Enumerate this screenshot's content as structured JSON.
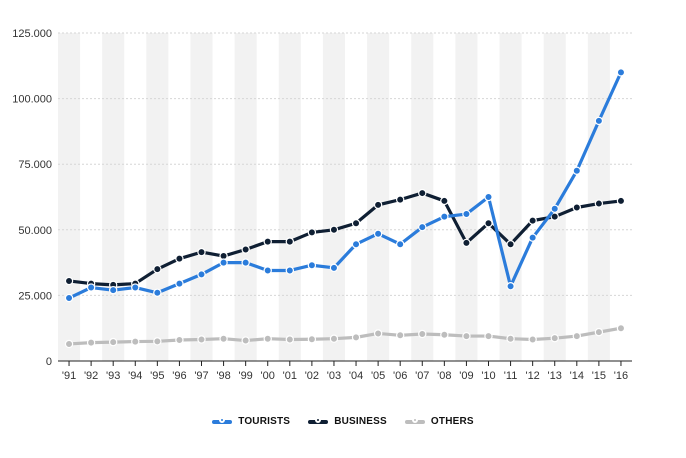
{
  "chart_data": {
    "type": "line",
    "categories": [
      "'91",
      "'92",
      "'93",
      "'94",
      "'95",
      "'96",
      "'97",
      "'98",
      "'99",
      "'00",
      "'01",
      "'02",
      "'03",
      "'04",
      "'05",
      "'06",
      "'07",
      "'08",
      "'09",
      "'10",
      "'11",
      "'12",
      "'13",
      "'14",
      "'15",
      "'16"
    ],
    "series": [
      {
        "name": "TOURISTS",
        "color": "#2b7cdb",
        "values": [
          24000,
          28000,
          27000,
          28000,
          26000,
          29500,
          33000,
          37500,
          37500,
          34500,
          34500,
          36500,
          35500,
          44500,
          48500,
          44500,
          51000,
          55000,
          56000,
          62500,
          28500,
          47000,
          58000,
          72500,
          91500,
          110000
        ]
      },
      {
        "name": "BUSINESS",
        "color": "#0f1f33",
        "values": [
          30500,
          29500,
          29000,
          29500,
          35000,
          39000,
          41500,
          40000,
          42500,
          45500,
          45500,
          49000,
          50000,
          52500,
          59500,
          61500,
          64000,
          61000,
          45000,
          52500,
          44500,
          53500,
          55000,
          58500,
          60000,
          61000
        ]
      },
      {
        "name": "OTHERS",
        "color": "#bdbdbd",
        "values": [
          6500,
          7000,
          7200,
          7400,
          7500,
          8000,
          8200,
          8500,
          7800,
          8500,
          8200,
          8300,
          8500,
          9000,
          10500,
          9800,
          10300,
          10000,
          9500,
          9500,
          8500,
          8200,
          8700,
          9500,
          11000,
          12500
        ]
      }
    ],
    "y_ticks": [
      {
        "value": 0,
        "label": "0"
      },
      {
        "value": 25000,
        "label": "25.000"
      },
      {
        "value": 50000,
        "label": "50.000"
      },
      {
        "value": 75000,
        "label": "75.000"
      },
      {
        "value": 100000,
        "label": "100.000"
      },
      {
        "value": 125000,
        "label": "125.000"
      }
    ],
    "ylim": [
      0,
      125000
    ],
    "grid": true,
    "legend_position": "bottom-center",
    "title": "",
    "xlabel": "",
    "ylabel": ""
  }
}
